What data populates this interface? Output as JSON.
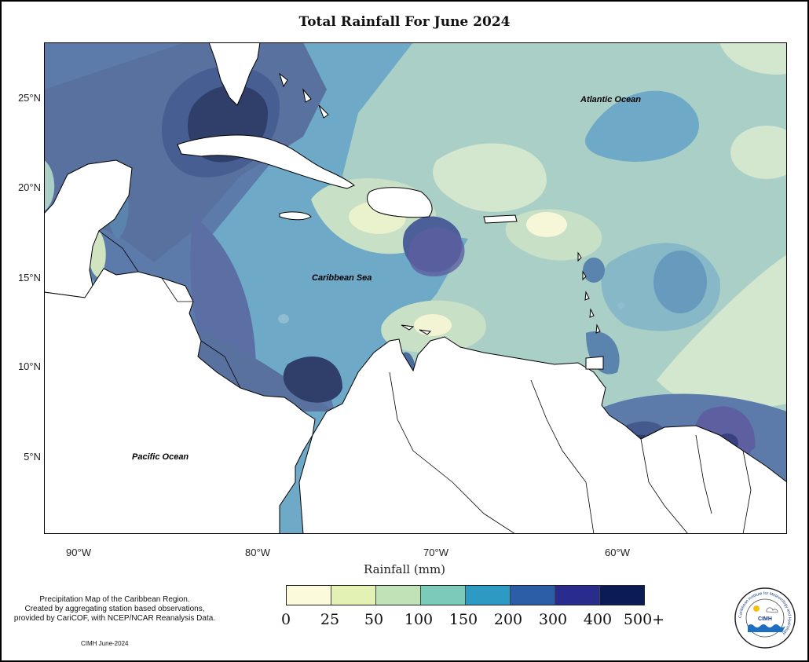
{
  "title": "Total Rainfall For June 2024",
  "map": {
    "labels": {
      "atlantic": "Atlantic Ocean",
      "caribbean": "Caribbean Sea",
      "pacific": "Pacific Ocean"
    },
    "lat_ticks": [
      "25°N",
      "20°N",
      "15°N",
      "10°N",
      "5°N"
    ],
    "lon_ticks": [
      "90°W",
      "80°W",
      "70°W",
      "60°W"
    ]
  },
  "legend": {
    "title": "Rainfall (mm)",
    "ticks": [
      "0",
      "25",
      "50",
      "100",
      "150",
      "200",
      "300",
      "400",
      "500+"
    ],
    "colors": [
      "#fbfbdc",
      "#e4f1b4",
      "#bfe3b6",
      "#7ccbb9",
      "#2d9ac4",
      "#2b5ea7",
      "#2a2c8d",
      "#0b1c55"
    ]
  },
  "caption": {
    "line1": "Precipitation Map of the Caribbean Region.",
    "line2": "Created by aggregating station based observations,",
    "line3": "provided by CariCOF, with NCEP/NCAR Reanalysis Data.",
    "credit": "CIMH June-2024"
  },
  "logo": {
    "name": "CIMH",
    "ring_text": "Caribbean Institute for Meteorology and Hydrology"
  }
}
